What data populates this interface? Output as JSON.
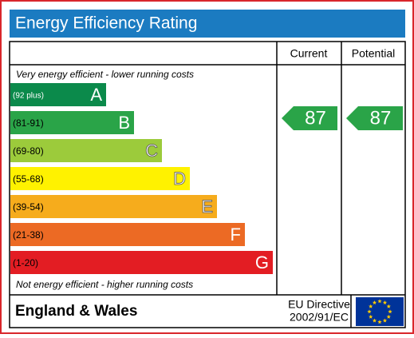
{
  "header": {
    "title": "Energy Efficiency Rating"
  },
  "columns": [
    "Current",
    "Potential"
  ],
  "top_note": "Very energy efficient - lower running costs",
  "bands": [
    {
      "range": "(92 plus)",
      "letter": "A",
      "color": "#0b8a4b"
    },
    {
      "range": "(81-91)",
      "letter": "B",
      "color": "#2aa448"
    },
    {
      "range": "(69-80)",
      "letter": "C",
      "color": "#9ccb3b"
    },
    {
      "range": "(55-68)",
      "letter": "D",
      "color": "#fff200"
    },
    {
      "range": "(39-54)",
      "letter": "E",
      "color": "#f6ac1c"
    },
    {
      "range": "(21-38)",
      "letter": "F",
      "color": "#ec6a24"
    },
    {
      "range": "(1-20)",
      "letter": "G",
      "color": "#e31d23"
    }
  ],
  "bottom_note": "Not energy efficient - higher running costs",
  "current": {
    "value": 87,
    "color": "#2aa448"
  },
  "potential": {
    "value": 87,
    "color": "#2aa448"
  },
  "footer": {
    "region": "England & Wales",
    "directive": [
      "EU Directive",
      "2002/91/EC"
    ]
  }
}
